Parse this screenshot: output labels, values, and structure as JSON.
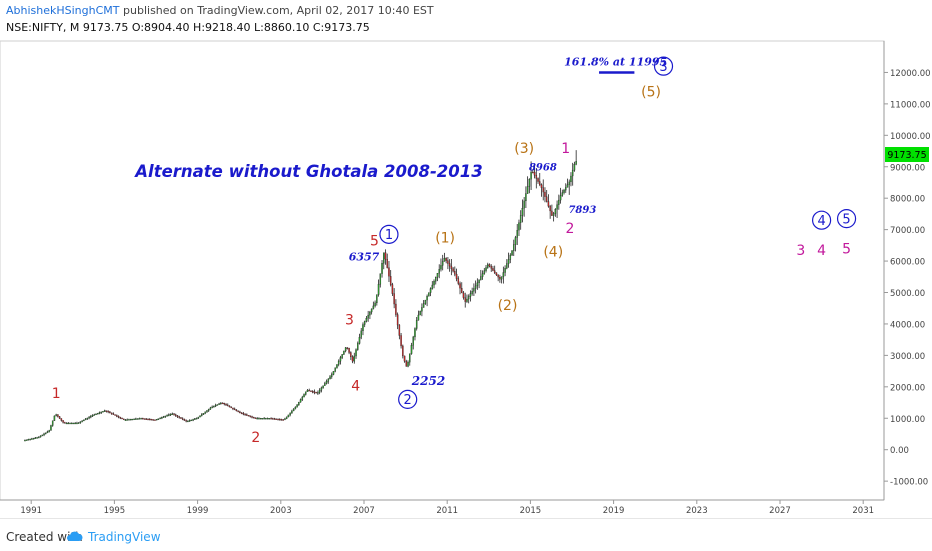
{
  "header": {
    "author": "AbhishekHSinghCMT",
    "published": "published on TradingView.com, April 02, 2017 10:40 EST",
    "symbol": "NSE:NIFTY, M",
    "ohlc": "9173.75 O:8904.40 H:9218.40 L:8860.10 C:9173.75"
  },
  "footer": {
    "created_with": "Created with",
    "brand": "TradingView"
  },
  "colors": {
    "up_candle": "#2e9e2e",
    "down_candle": "#c62828",
    "wick": "#222222",
    "price_badge": "#00e000",
    "navy": "#1a1acc",
    "red": "#c62828",
    "orange": "#b87316",
    "magenta": "#c2189c"
  },
  "chart_data": {
    "type": "candlestick",
    "title": "Alternate without Ghotala 2008-2013",
    "price_badge": "9173.75",
    "x_ticks": [
      "1991",
      "1995",
      "1999",
      "2003",
      "2007",
      "2011",
      "2015",
      "2019",
      "2023",
      "2027",
      "2031"
    ],
    "y_ticks": [
      "12000.00",
      "11000.00",
      "10000.00",
      "9000.00",
      "8000.00",
      "7000.00",
      "6000.00",
      "5000.00",
      "4000.00",
      "3000.00",
      "2000.00",
      "1000.00",
      "0.00",
      "-1000.00"
    ],
    "ylim": [
      -1600,
      13000
    ],
    "xlim": [
      1989.5,
      2032.0
    ],
    "price_path": [
      [
        1990.7,
        300
      ],
      [
        1991.4,
        400
      ],
      [
        1991.9,
        600
      ],
      [
        1992.2,
        1150
      ],
      [
        1992.6,
        850
      ],
      [
        1993.3,
        850
      ],
      [
        1994.0,
        1100
      ],
      [
        1994.6,
        1250
      ],
      [
        1995.5,
        950
      ],
      [
        1996.3,
        1000
      ],
      [
        1997.0,
        950
      ],
      [
        1997.8,
        1150
      ],
      [
        1998.5,
        900
      ],
      [
        1999.0,
        1000
      ],
      [
        1999.7,
        1350
      ],
      [
        2000.2,
        1500
      ],
      [
        2001.0,
        1200
      ],
      [
        2001.8,
        1000
      ],
      [
        2002.5,
        1000
      ],
      [
        2003.2,
        950
      ],
      [
        2003.8,
        1400
      ],
      [
        2004.3,
        1900
      ],
      [
        2004.8,
        1800
      ],
      [
        2005.5,
        2400
      ],
      [
        2006.2,
        3300
      ],
      [
        2006.5,
        2800
      ],
      [
        2007.0,
        4000
      ],
      [
        2007.6,
        4700
      ],
      [
        2008.0,
        6300
      ],
      [
        2008.4,
        5000
      ],
      [
        2008.9,
        3000
      ],
      [
        2009.1,
        2600
      ],
      [
        2009.6,
        4200
      ],
      [
        2010.3,
        5200
      ],
      [
        2010.9,
        6100
      ],
      [
        2011.4,
        5600
      ],
      [
        2011.9,
        4700
      ],
      [
        2012.4,
        5200
      ],
      [
        2013.0,
        5900
      ],
      [
        2013.6,
        5400
      ],
      [
        2014.2,
        6400
      ],
      [
        2014.7,
        7800
      ],
      [
        2015.1,
        8900
      ],
      [
        2015.6,
        8300
      ],
      [
        2016.1,
        7400
      ],
      [
        2016.5,
        8100
      ],
      [
        2016.9,
        8500
      ],
      [
        2017.2,
        9173.75
      ]
    ],
    "annotations": [
      {
        "text": "1",
        "x": 1992.2,
        "y": 1800,
        "color": "red",
        "size": 14
      },
      {
        "text": "2",
        "x": 2001.8,
        "y": 400,
        "color": "red",
        "size": 14
      },
      {
        "text": "3",
        "x": 2006.3,
        "y": 4150,
        "color": "red",
        "size": 14
      },
      {
        "text": "4",
        "x": 2006.6,
        "y": 2050,
        "color": "red",
        "size": 14
      },
      {
        "text": "5",
        "x": 2007.5,
        "y": 6650,
        "color": "red",
        "size": 14
      },
      {
        "text": "1",
        "x": 2008.2,
        "y": 6850,
        "color": "navy",
        "size": 13,
        "circle": true
      },
      {
        "text": "6357",
        "x": 2007.0,
        "y": 6150,
        "color": "navy",
        "size": 11,
        "italic": true,
        "bold": true
      },
      {
        "text": "2",
        "x": 2009.1,
        "y": 1600,
        "color": "navy",
        "size": 13,
        "circle": true
      },
      {
        "text": "2252",
        "x": 2010.1,
        "y": 2200,
        "color": "navy",
        "size": 12,
        "italic": true,
        "bold": true
      },
      {
        "text": "(1)",
        "x": 2010.9,
        "y": 6750,
        "color": "orange",
        "size": 14
      },
      {
        "text": "(2)",
        "x": 2013.9,
        "y": 4600,
        "color": "orange",
        "size": 14
      },
      {
        "text": "(3)",
        "x": 2014.7,
        "y": 9600,
        "color": "orange",
        "size": 14
      },
      {
        "text": "(4)",
        "x": 2016.1,
        "y": 6300,
        "color": "orange",
        "size": 14
      },
      {
        "text": "(5)",
        "x": 2020.8,
        "y": 11400,
        "color": "orange",
        "size": 14
      },
      {
        "text": "8968",
        "x": 2015.6,
        "y": 9000,
        "color": "navy",
        "size": 10,
        "italic": true,
        "bold": true
      },
      {
        "text": "7893",
        "x": 2017.5,
        "y": 7650,
        "color": "navy",
        "size": 10,
        "italic": true,
        "bold": true
      },
      {
        "text": "1",
        "x": 2016.7,
        "y": 9600,
        "color": "magenta",
        "size": 14
      },
      {
        "text": "2",
        "x": 2016.9,
        "y": 7050,
        "color": "magenta",
        "size": 14
      },
      {
        "text": "161.8% at 11995",
        "x": 2019.1,
        "y": 12350,
        "color": "navy",
        "size": 11,
        "italic": true,
        "bold": true
      },
      {
        "text": "3",
        "x": 2021.4,
        "y": 12200,
        "color": "navy",
        "size": 13,
        "circle": true
      },
      {
        "text": "4",
        "x": 2029.0,
        "y": 7300,
        "color": "navy",
        "size": 13,
        "circle": true
      },
      {
        "text": "5",
        "x": 2030.2,
        "y": 7350,
        "color": "navy",
        "size": 13,
        "circle": true
      },
      {
        "text": "3",
        "x": 2028.0,
        "y": 6350,
        "color": "magenta",
        "size": 14
      },
      {
        "text": "4",
        "x": 2029.0,
        "y": 6350,
        "color": "magenta",
        "size": 14
      },
      {
        "text": "5",
        "x": 2030.2,
        "y": 6400,
        "color": "magenta",
        "size": 14
      }
    ],
    "target_line": {
      "x1": 2018.3,
      "x2": 2020.0,
      "y": 12000,
      "color": "navy"
    }
  }
}
